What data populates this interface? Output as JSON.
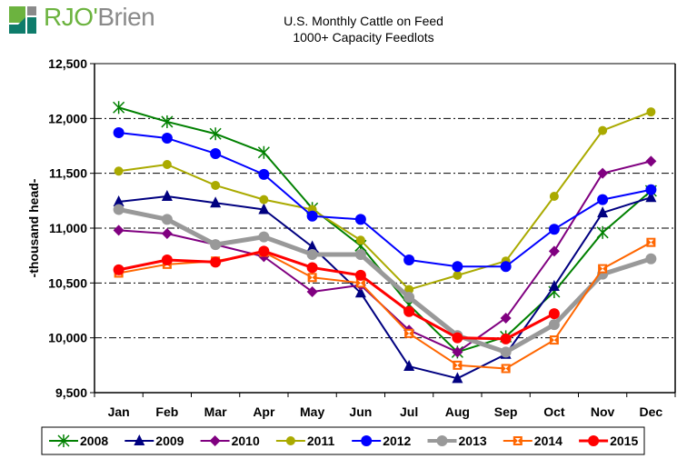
{
  "brand": {
    "logo_part1": "RJO'",
    "logo_part2": "Brien",
    "colors": {
      "green": "#6cb33f",
      "teal": "#0e7c6b",
      "gray": "#8a8a8a"
    }
  },
  "chart_data": {
    "type": "line",
    "title": "U.S. Monthly Cattle on Feed",
    "subtitle": "1000+ Capacity Feedlots",
    "xlabel": "",
    "ylabel": "-thousand head-",
    "ylim": [
      9500,
      12500
    ],
    "yticks": [
      9500,
      10000,
      10500,
      11000,
      11500,
      12000,
      12500
    ],
    "ytick_labels": [
      "9,500",
      "10,000",
      "10,500",
      "11,000",
      "11,500",
      "12,000",
      "12,500"
    ],
    "grid": "horizontal dash-dot",
    "legend": "bottom",
    "categories": [
      "Jan",
      "Feb",
      "Mar",
      "Apr",
      "May",
      "Jun",
      "Jul",
      "Aug",
      "Sep",
      "Oct",
      "Nov",
      "Dec"
    ],
    "series": [
      {
        "name": "2008",
        "color": "#008000",
        "marker": "asterisk",
        "width": 2,
        "values": [
          12100,
          11970,
          11860,
          11690,
          11180,
          10840,
          10300,
          9870,
          10010,
          10420,
          10960,
          11340
        ]
      },
      {
        "name": "2009",
        "color": "#000080",
        "marker": "triangle",
        "width": 2,
        "values": [
          11240,
          11290,
          11230,
          11170,
          10830,
          10410,
          9740,
          9630,
          9850,
          10470,
          11140,
          11280
        ]
      },
      {
        "name": "2010",
        "color": "#800080",
        "marker": "diamond",
        "width": 2,
        "values": [
          10980,
          10950,
          10850,
          10740,
          10420,
          10480,
          10070,
          9870,
          10180,
          10790,
          11500,
          11610
        ]
      },
      {
        "name": "2011",
        "color": "#aaaa00",
        "marker": "circle-small",
        "width": 2,
        "values": [
          11520,
          11580,
          11390,
          11260,
          11170,
          10890,
          10440,
          10570,
          10700,
          11290,
          11890,
          12060
        ]
      },
      {
        "name": "2012",
        "color": "#0000ff",
        "marker": "circle",
        "width": 2,
        "values": [
          11870,
          11820,
          11680,
          11490,
          11110,
          11080,
          10710,
          10650,
          10650,
          10990,
          11260,
          11350
        ]
      },
      {
        "name": "2013",
        "color": "#999999",
        "marker": "circle",
        "width": 5,
        "values": [
          11170,
          11080,
          10850,
          10920,
          10760,
          10760,
          10370,
          10020,
          9870,
          10120,
          10580,
          10720
        ]
      },
      {
        "name": "2014",
        "color": "#ff6600",
        "marker": "bowtie",
        "width": 2,
        "values": [
          10590,
          10670,
          10700,
          10780,
          10550,
          10500,
          10040,
          9750,
          9720,
          9980,
          10630,
          10870
        ]
      },
      {
        "name": "2015",
        "color": "#ff0000",
        "marker": "circle",
        "width": 3,
        "values": [
          10620,
          10710,
          10690,
          10790,
          10640,
          10570,
          10240,
          10000,
          9990,
          10220
        ]
      }
    ]
  }
}
